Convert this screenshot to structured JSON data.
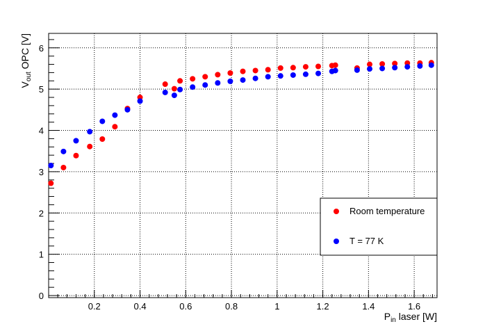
{
  "chart_data": {
    "type": "scatter",
    "title": "",
    "xlabel": {
      "main": "P",
      "sub": "in",
      "rest": " laser [W]"
    },
    "ylabel": {
      "main": "V",
      "sub": "out",
      "rest": " OPC [V]"
    },
    "xlim": [
      0.0,
      1.7
    ],
    "ylim": [
      -0.05,
      6.35
    ],
    "xticks": [
      0.2,
      0.4,
      0.6,
      0.8,
      1.0,
      1.2,
      1.4,
      1.6
    ],
    "xtick_labels": [
      "0.2",
      "0.4",
      "0.6",
      "0.8",
      "1",
      "1.2",
      "1.4",
      "1.6"
    ],
    "yticks": [
      0,
      1,
      2,
      3,
      4,
      5,
      6
    ],
    "ytick_labels": [
      "0",
      "1",
      "2",
      "3",
      "4",
      "5",
      "6"
    ],
    "grid": true,
    "legend_position": "bottom-right",
    "series": [
      {
        "name": "Room temperature",
        "color": "#ff0000",
        "x": [
          0.01,
          0.065,
          0.12,
          0.18,
          0.235,
          0.29,
          0.345,
          0.4,
          0.51,
          0.55,
          0.575,
          0.63,
          0.685,
          0.74,
          0.795,
          0.85,
          0.905,
          0.96,
          1.015,
          1.07,
          1.125,
          1.18,
          1.24,
          1.255,
          1.35,
          1.405,
          1.46,
          1.515,
          1.57,
          1.625,
          1.675
        ],
        "y": [
          2.72,
          3.1,
          3.39,
          3.61,
          3.79,
          4.09,
          4.53,
          4.8,
          5.12,
          5.01,
          5.2,
          5.25,
          5.3,
          5.35,
          5.39,
          5.43,
          5.45,
          5.47,
          5.51,
          5.52,
          5.54,
          5.55,
          5.57,
          5.58,
          5.51,
          5.6,
          5.61,
          5.62,
          5.63,
          5.63,
          5.64
        ]
      },
      {
        "name": "T = 77 K",
        "color": "#0000ff",
        "x": [
          0.01,
          0.065,
          0.12,
          0.18,
          0.235,
          0.29,
          0.345,
          0.4,
          0.51,
          0.55,
          0.575,
          0.63,
          0.685,
          0.74,
          0.795,
          0.85,
          0.905,
          0.96,
          1.015,
          1.07,
          1.125,
          1.18,
          1.24,
          1.255,
          1.35,
          1.405,
          1.46,
          1.515,
          1.57,
          1.625,
          1.675
        ],
        "y": [
          3.15,
          3.49,
          3.75,
          3.97,
          4.22,
          4.37,
          4.5,
          4.71,
          4.92,
          4.85,
          4.99,
          5.05,
          5.1,
          5.15,
          5.19,
          5.22,
          5.26,
          5.3,
          5.32,
          5.34,
          5.36,
          5.38,
          5.43,
          5.45,
          5.46,
          5.49,
          5.5,
          5.52,
          5.54,
          5.56,
          5.58
        ]
      }
    ]
  }
}
